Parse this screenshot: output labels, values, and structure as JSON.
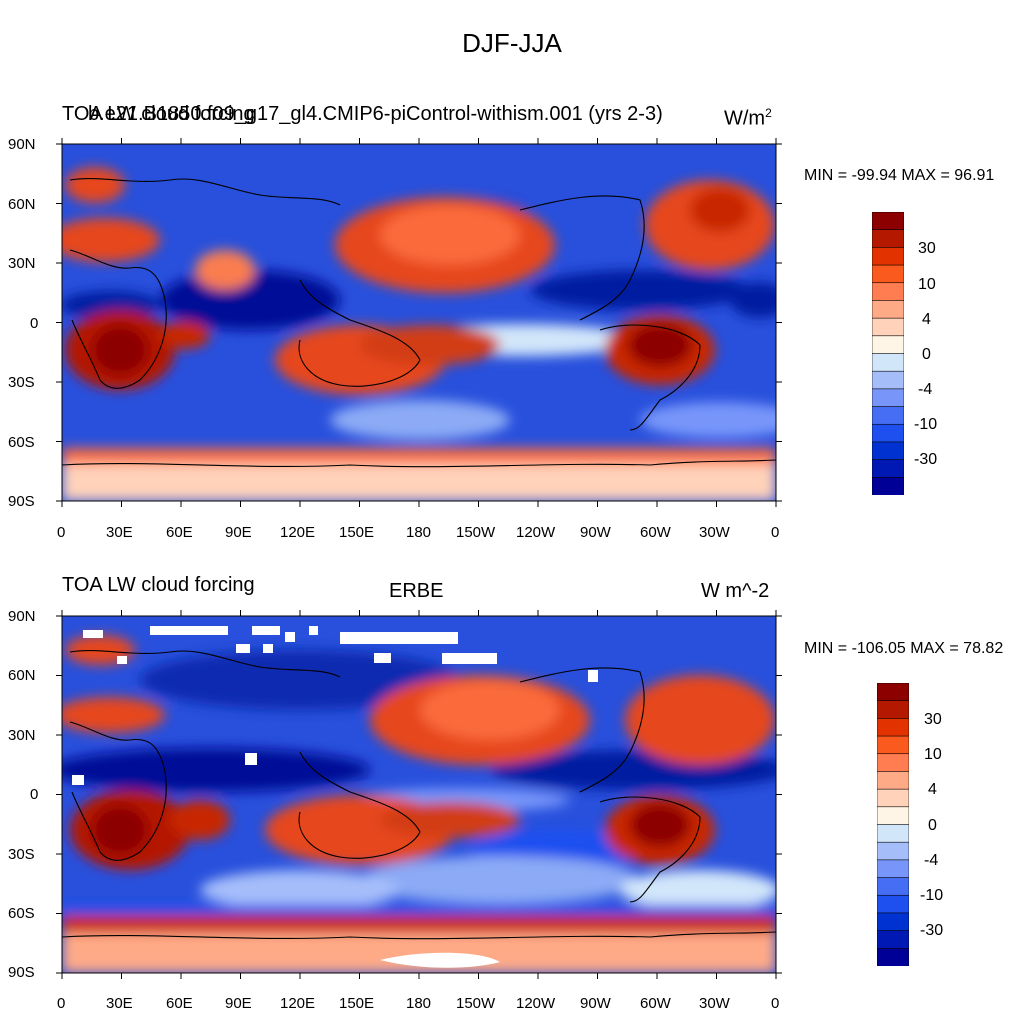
{
  "page_title": "DJF-JJA",
  "chart_data": [
    {
      "type": "heatmap",
      "subtype": "global-map-contour",
      "title_left": "TOA LW cloud forcing",
      "title_overlap": "b.e21.B1850.f09_g17_gl4.CMIP6-piControl-withism.001 (yrs 2-3)",
      "title_center": "",
      "units": "W/m",
      "units_superscript": "2",
      "min_max_text": "MIN = -99.94 MAX =  96.91",
      "min": -99.94,
      "max": 96.91,
      "colorbar_labels": [
        "30",
        "10",
        "4",
        "0",
        "-4",
        "-10",
        "-30"
      ],
      "xticks": [
        "0",
        "30E",
        "60E",
        "90E",
        "120E",
        "150E",
        "180",
        "150W",
        "120W",
        "90W",
        "60W",
        "30W",
        "0"
      ],
      "yticks": [
        "90N",
        "60N",
        "30N",
        "0",
        "30S",
        "60S",
        "90S"
      ],
      "missing_data": false
    },
    {
      "type": "heatmap",
      "subtype": "global-map-contour",
      "title_left": "TOA LW cloud forcing",
      "title_center": "ERBE",
      "units": "W m^-2",
      "min_max_text": "MIN = -106.05 MAX =  78.82",
      "min": -106.05,
      "max": 78.82,
      "colorbar_labels": [
        "30",
        "10",
        "4",
        "0",
        "-4",
        "-10",
        "-30"
      ],
      "xticks": [
        "0",
        "30E",
        "60E",
        "90E",
        "120E",
        "150E",
        "180",
        "150W",
        "120W",
        "90W",
        "60W",
        "30W",
        "0"
      ],
      "yticks": [
        "90N",
        "60N",
        "30N",
        "0",
        "30S",
        "60S",
        "90S"
      ],
      "missing_data": true
    }
  ],
  "colorbar_colors": [
    "#000096",
    "#0019b4",
    "#0032d2",
    "#1e50f0",
    "#466ef5",
    "#7896fa",
    "#a5befa",
    "#d2e6fa",
    "#fff5e6",
    "#ffd2b9",
    "#ffaa87",
    "#ff7d50",
    "#fa5a1e",
    "#e13200",
    "#b41900",
    "#8c0000"
  ],
  "colors": {
    "background": "#ffffff",
    "ocean_default": "#2850dc"
  }
}
